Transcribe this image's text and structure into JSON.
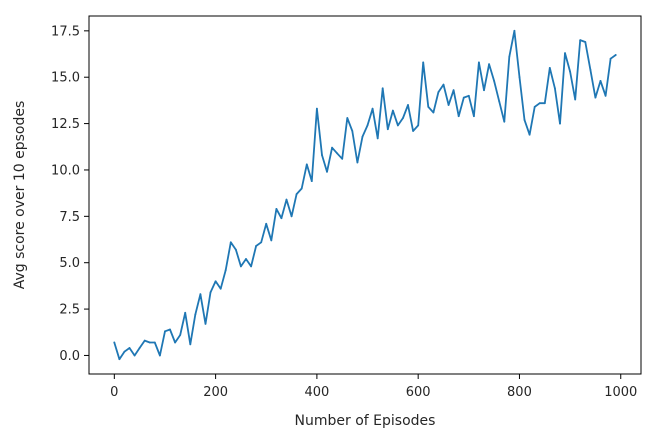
{
  "chart_data": {
    "type": "line",
    "xlabel": "Number of Episodes",
    "ylabel": "Avg score over 10 epsodes",
    "xlim": [
      -50,
      1040
    ],
    "ylim": [
      -1.0,
      18.3
    ],
    "xticks": [
      0,
      200,
      400,
      600,
      800,
      1000
    ],
    "xtick_labels": [
      "0",
      "200",
      "400",
      "600",
      "800",
      "1000"
    ],
    "yticks": [
      0.0,
      2.5,
      5.0,
      7.5,
      10.0,
      12.5,
      15.0,
      17.5
    ],
    "ytick_labels": [
      "0.0",
      "2.5",
      "5.0",
      "7.5",
      "10.0",
      "12.5",
      "15.0",
      "17.5"
    ],
    "grid": false,
    "line_color": "#1f77b4",
    "series": [
      {
        "x": [
          0,
          10,
          20,
          30,
          40,
          50,
          60,
          70,
          80,
          90,
          100,
          110,
          120,
          130,
          140,
          150,
          160,
          170,
          180,
          190,
          200,
          210,
          220,
          230,
          240,
          250,
          260,
          270,
          280,
          290,
          300,
          310,
          320,
          330,
          340,
          350,
          360,
          370,
          380,
          390,
          400,
          410,
          420,
          430,
          440,
          450,
          460,
          470,
          480,
          490,
          500,
          510,
          520,
          530,
          540,
          550,
          560,
          570,
          580,
          590,
          600,
          610,
          620,
          630,
          640,
          650,
          660,
          670,
          680,
          690,
          700,
          710,
          720,
          730,
          740,
          750,
          760,
          770,
          780,
          790,
          800,
          810,
          820,
          830,
          840,
          850,
          860,
          870,
          880,
          890,
          900,
          910,
          920,
          930,
          940,
          950,
          960,
          970,
          980,
          990
        ],
        "y": [
          0.7,
          -0.2,
          0.2,
          0.4,
          0.0,
          0.4,
          0.8,
          0.7,
          0.7,
          0.0,
          1.3,
          1.4,
          0.7,
          1.1,
          2.3,
          0.6,
          2.2,
          3.3,
          1.7,
          3.4,
          4.0,
          3.6,
          4.6,
          6.1,
          5.7,
          4.8,
          5.2,
          4.8,
          5.9,
          6.1,
          7.1,
          6.2,
          7.9,
          7.4,
          8.4,
          7.5,
          8.7,
          9.0,
          10.3,
          9.4,
          13.3,
          10.8,
          9.9,
          11.2,
          10.9,
          10.6,
          12.8,
          12.1,
          10.4,
          11.8,
          12.4,
          13.3,
          11.7,
          14.4,
          12.2,
          13.2,
          12.4,
          12.8,
          13.5,
          12.1,
          12.4,
          15.8,
          13.4,
          13.1,
          14.2,
          14.6,
          13.5,
          14.3,
          12.9,
          13.9,
          14.0,
          12.9,
          15.8,
          14.3,
          15.7,
          14.8,
          13.7,
          12.6,
          16.1,
          17.5,
          15.0,
          12.7,
          11.9,
          13.4,
          13.6,
          13.6,
          15.5,
          14.4,
          12.5,
          16.3,
          15.3,
          13.8,
          17.0,
          16.9,
          15.4,
          13.9,
          14.8,
          14.0,
          16.0,
          16.2
        ]
      }
    ]
  }
}
